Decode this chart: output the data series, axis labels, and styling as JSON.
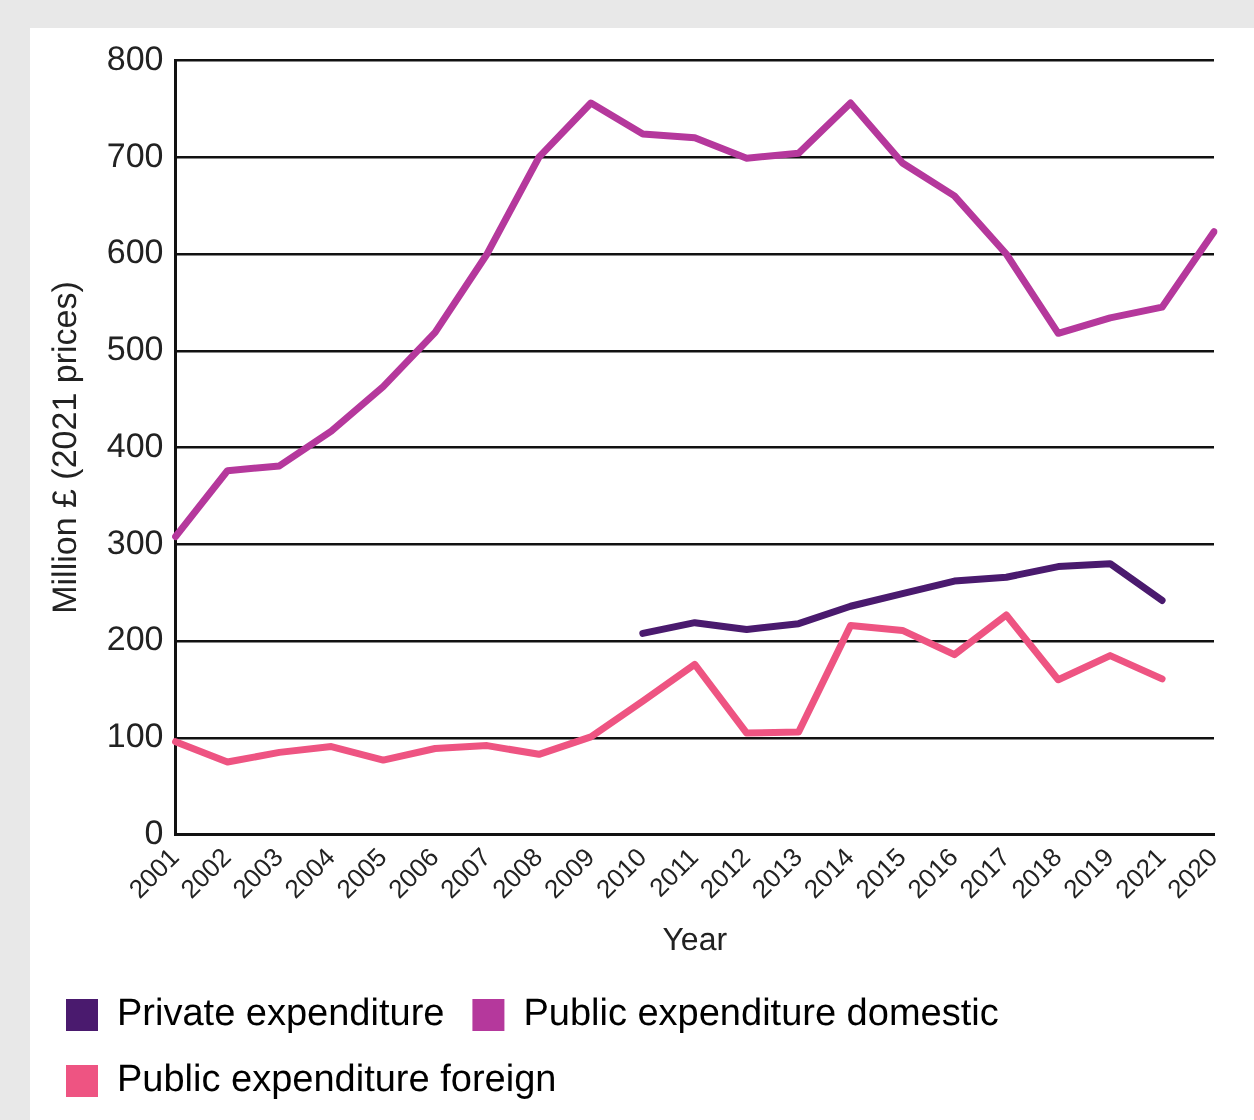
{
  "chart_data": {
    "type": "line",
    "xlabel": "Year",
    "ylabel": "Million £ (2021 prices)",
    "categories": [
      "2001",
      "2002",
      "2003",
      "2004",
      "2005",
      "2006",
      "2007",
      "2008",
      "2009",
      "2010",
      "2011",
      "2012",
      "2013",
      "2014",
      "2015",
      "2016",
      "2017",
      "2018",
      "2019",
      "2021",
      "2020"
    ],
    "series": [
      {
        "name": "Private expenditure",
        "color": "#4a1a6e",
        "values": [
          null,
          null,
          null,
          null,
          null,
          null,
          null,
          null,
          null,
          208,
          219,
          212,
          218,
          236,
          249,
          262,
          266,
          277,
          280,
          242,
          null
        ]
      },
      {
        "name": "Public expenditure domestic",
        "color": "#b5389c",
        "values": [
          308,
          376,
          381,
          417,
          463,
          519,
          600,
          700,
          756,
          724,
          720,
          699,
          704,
          756,
          694,
          660,
          600,
          518,
          534,
          545,
          623
        ]
      },
      {
        "name": "Public expenditure foreign",
        "color": "#ee5482",
        "values": [
          96,
          75,
          85,
          91,
          77,
          89,
          92,
          83,
          101,
          138,
          176,
          105,
          106,
          216,
          211,
          186,
          227,
          160,
          185,
          161,
          null
        ]
      }
    ],
    "ylim": [
      0,
      800
    ],
    "yticks": [
      0,
      100,
      200,
      300,
      400,
      500,
      600,
      700,
      800
    ],
    "grid": "y",
    "legend": "bottom",
    "marker": "none",
    "line_style": "solid"
  }
}
